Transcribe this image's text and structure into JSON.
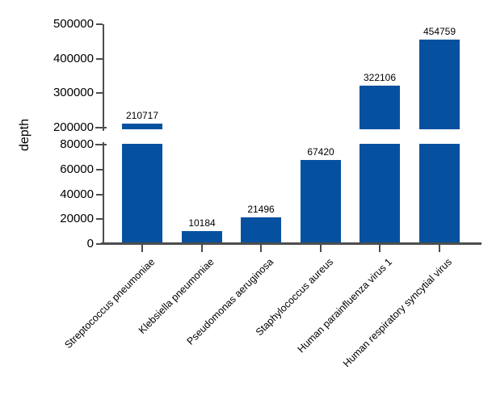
{
  "chart_data": {
    "type": "bar",
    "title": "",
    "ylabel": "depth",
    "xlabel": "",
    "categories": [
      "Streptococcus pneumoniae",
      "Klebsiella pneumoniae",
      "Pseudomonas aeruginosa",
      "Staphylococcus aureus",
      "Human parainfluenza virus 1",
      "Human respiratory syncytial virus"
    ],
    "values": [
      210717,
      10184,
      21496,
      67420,
      322106,
      454759
    ],
    "value_labels": [
      "210717",
      "10184",
      "21496",
      "67420",
      "322106",
      "454759"
    ],
    "bar_color": "#0551a0",
    "axis_color": "#4d4d4d",
    "text_color": "#000000",
    "grid": false,
    "legend": "none",
    "y_axis": {
      "broken": true,
      "lower_range": [
        0,
        80000
      ],
      "upper_range": [
        200000,
        500000
      ],
      "lower_ticks": [
        {
          "value": 0,
          "label": "0"
        },
        {
          "value": 20000,
          "label": "20000"
        },
        {
          "value": 40000,
          "label": "40000"
        },
        {
          "value": 60000,
          "label": "60000"
        },
        {
          "value": 80000,
          "label": "80000"
        }
      ],
      "upper_ticks": [
        {
          "value": 200000,
          "label": "200000"
        },
        {
          "value": 300000,
          "label": "300000"
        },
        {
          "value": 400000,
          "label": "400000"
        },
        {
          "value": 500000,
          "label": "500000"
        }
      ]
    }
  }
}
